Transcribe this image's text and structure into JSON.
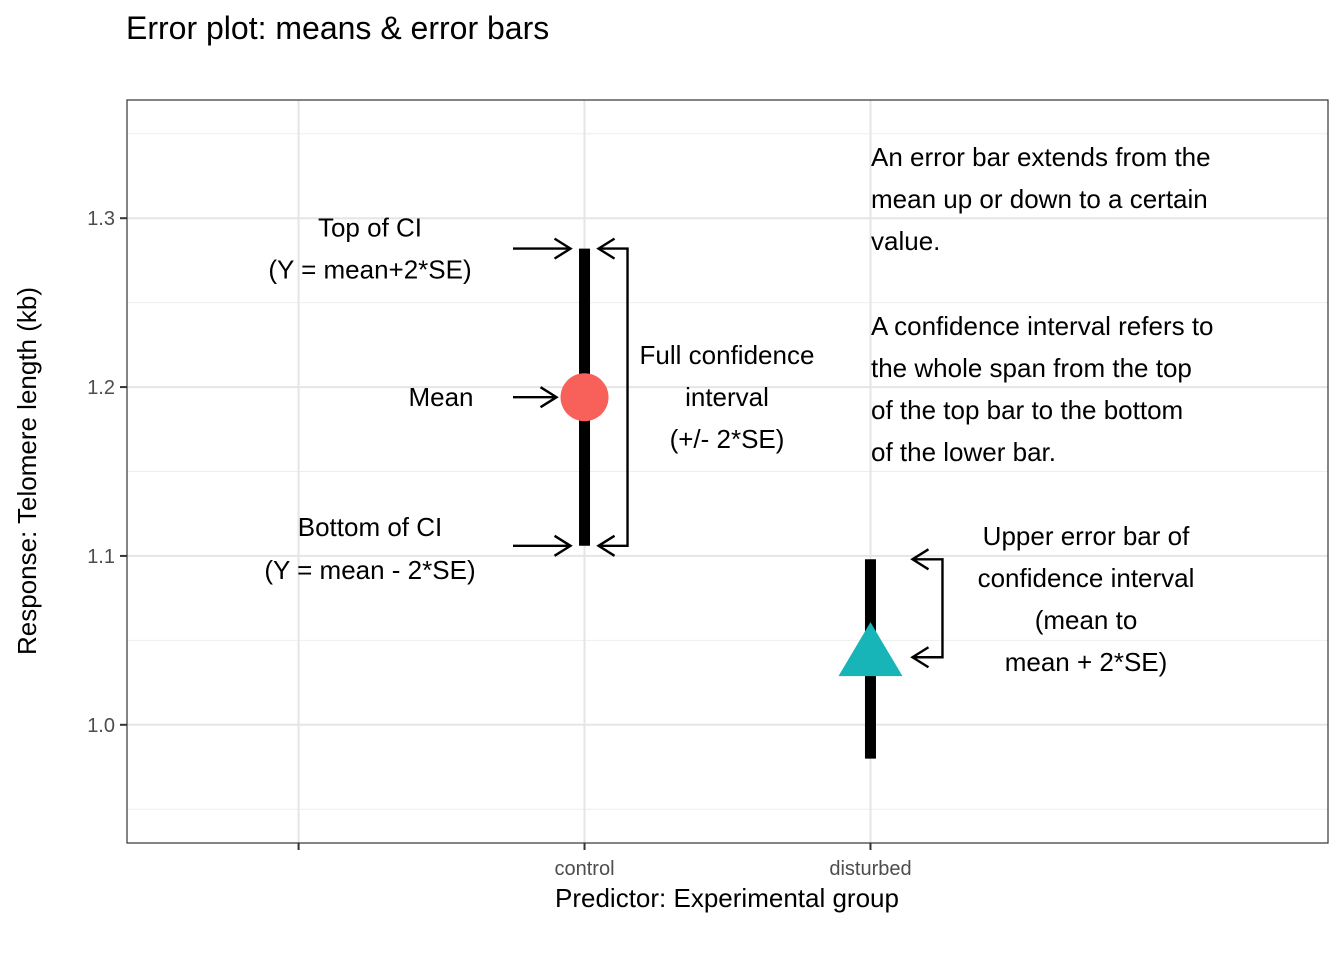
{
  "chart_data": {
    "type": "error_plot",
    "title": "Error plot: means & error bars",
    "xlabel": "Predictor: Experimental group",
    "ylabel": "Response: Telomere length (kb)",
    "categories": [
      "",
      "control",
      "disturbed"
    ],
    "ylim": [
      0.93,
      1.37
    ],
    "yticks": [
      1.0,
      1.1,
      1.2,
      1.3
    ],
    "ytick_labels": [
      "1.0",
      "1.1",
      "1.2",
      "1.3"
    ],
    "grid": true,
    "points": [
      {
        "group": "control",
        "mean": 1.194,
        "lower": 1.106,
        "upper": 1.282,
        "shape": "circle",
        "color": "#F8605A"
      },
      {
        "group": "disturbed",
        "mean": 1.04,
        "lower": 0.98,
        "upper": 1.098,
        "shape": "triangle",
        "color": "#17B5B7"
      }
    ],
    "annotations": {
      "top_ci": [
        "Top of CI",
        "(Y = mean+2*SE)"
      ],
      "mean": [
        "Mean"
      ],
      "bottom_ci": [
        "Bottom of CI",
        "(Y = mean - 2*SE)"
      ],
      "full_ci": [
        "Full confidence",
        "interval",
        "(+/- 2*SE)"
      ],
      "error_bar_note": [
        "An error bar extends from the",
        "mean up or down to a certain",
        "value."
      ],
      "ci_note": [
        "A confidence interval refers to",
        "the whole span from the top",
        "of the top bar to the bottom",
        "of the lower bar."
      ],
      "upper_bar": [
        "Upper error bar of",
        "confidence interval",
        "(mean to",
        "mean + 2*SE)"
      ]
    }
  }
}
